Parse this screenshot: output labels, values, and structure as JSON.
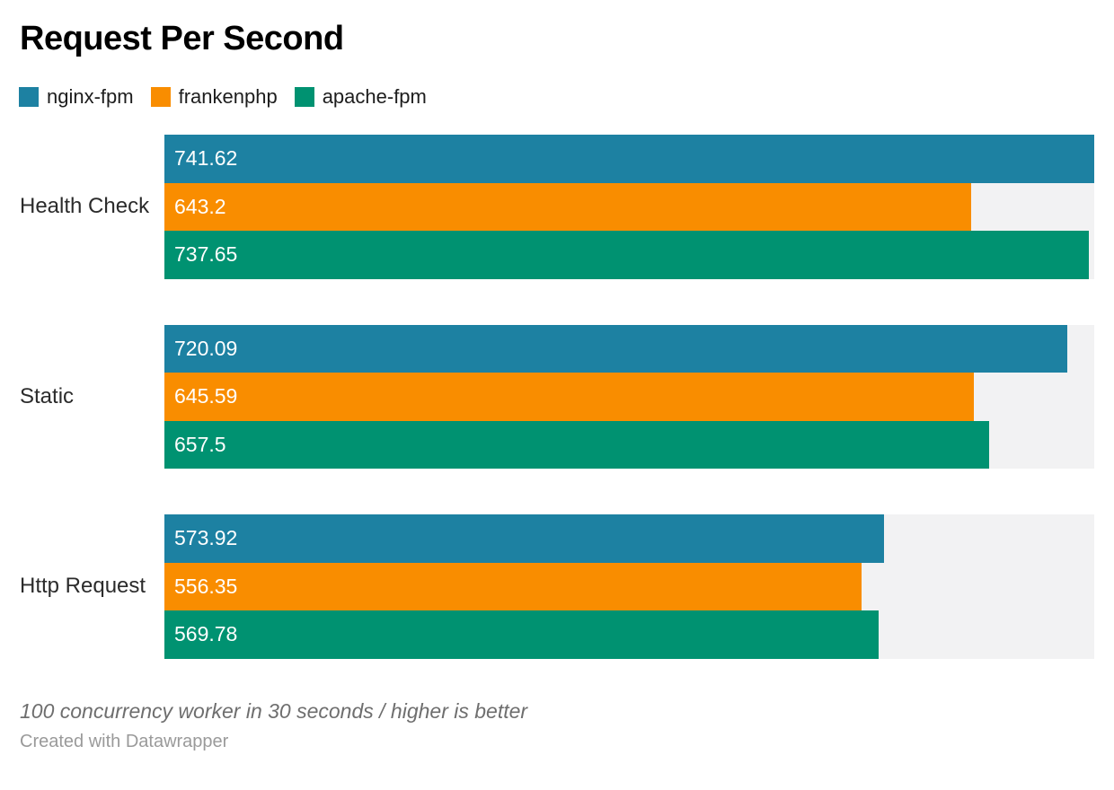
{
  "page": {
    "title": "Request Per Second",
    "note": "100 concurrency worker in 30 seconds / higher is better",
    "credit": "Created with Datawrapper"
  },
  "colors": {
    "track": "#f2f2f3",
    "value_label": "#ffffff"
  },
  "chart_data": {
    "type": "bar",
    "orientation": "horizontal",
    "title": "Request Per Second",
    "categories": [
      "Health Check",
      "Static",
      "Http Request"
    ],
    "series": [
      {
        "name": "nginx-fpm",
        "color": "#1d81a2",
        "values": [
          741.62,
          720.09,
          573.92
        ]
      },
      {
        "name": "frankenphp",
        "color": "#f98d00",
        "values": [
          643.2,
          645.59,
          556.35
        ]
      },
      {
        "name": "apache-fpm",
        "color": "#009271",
        "values": [
          737.65,
          657.5,
          569.78
        ]
      }
    ],
    "value_labels": [
      [
        "741.62",
        "720.09",
        "573.92"
      ],
      [
        "643.2",
        "645.59",
        "556.35"
      ],
      [
        "737.65",
        "657.5",
        "569.78"
      ]
    ],
    "xlim": [
      0,
      741.62
    ],
    "grid": false,
    "legend_position": "top",
    "note": "100 concurrency worker in 30 seconds / higher is better",
    "credit": "Created with Datawrapper"
  }
}
